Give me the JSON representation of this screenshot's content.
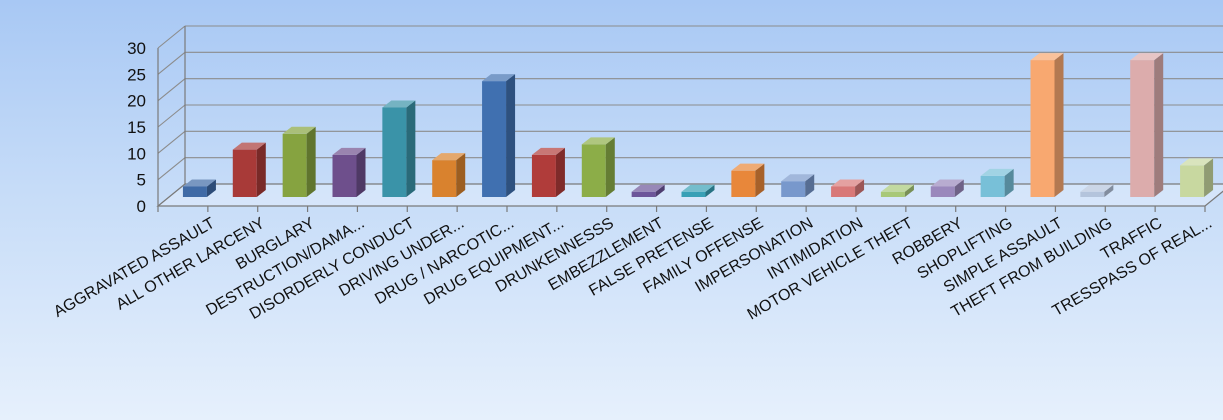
{
  "chart_data": {
    "type": "bar",
    "title": "",
    "xlabel": "",
    "ylabel": "",
    "ylim": [
      0,
      30
    ],
    "yticks": [
      0,
      5,
      10,
      15,
      20,
      25,
      30
    ],
    "grid": true,
    "three_d": true,
    "categories": [
      "AGGRAVATED ASSAULT",
      "ALL OTHER LARCENY",
      "BURGLARY",
      "DESTRUCTION/DAMA...",
      "DISORDERLY CONDUCT",
      "DRIVING UNDER...",
      "DRUG / NARCOTIC...",
      "DRUG EQUIPMENT...",
      "DRUNKENNESSS",
      "EMBEZZLEMENT",
      "FALSE PRETENSE",
      "FAMILY OFFENSE",
      "IMPERSONATION",
      "INTIMIDATION",
      "MOTOR VEHICLE THEFT",
      "ROBBERY",
      "SHOPLIFTING",
      "SIMPLE ASSAULT",
      "THEFT FROM BUILDING",
      "TRAFFIC",
      "TRESSPASS OF REAL..."
    ],
    "values": [
      2,
      9,
      12,
      8,
      17,
      7,
      22,
      8,
      10,
      1,
      1,
      5,
      3,
      2,
      1,
      2,
      4,
      26,
      1,
      26,
      6
    ],
    "colors": [
      "#3f6aa6",
      "#a83a38",
      "#86a340",
      "#6e4f8c",
      "#3a93a8",
      "#d9822e",
      "#4070b0",
      "#b03c3a",
      "#8cad48",
      "#6c559a",
      "#38a0b6",
      "#e8873a",
      "#7898cc",
      "#d87878",
      "#a8c878",
      "#9a88bc",
      "#78c0d8",
      "#f8a870",
      "#b4c4dc",
      "#dcacac",
      "#c8d8a0"
    ]
  }
}
